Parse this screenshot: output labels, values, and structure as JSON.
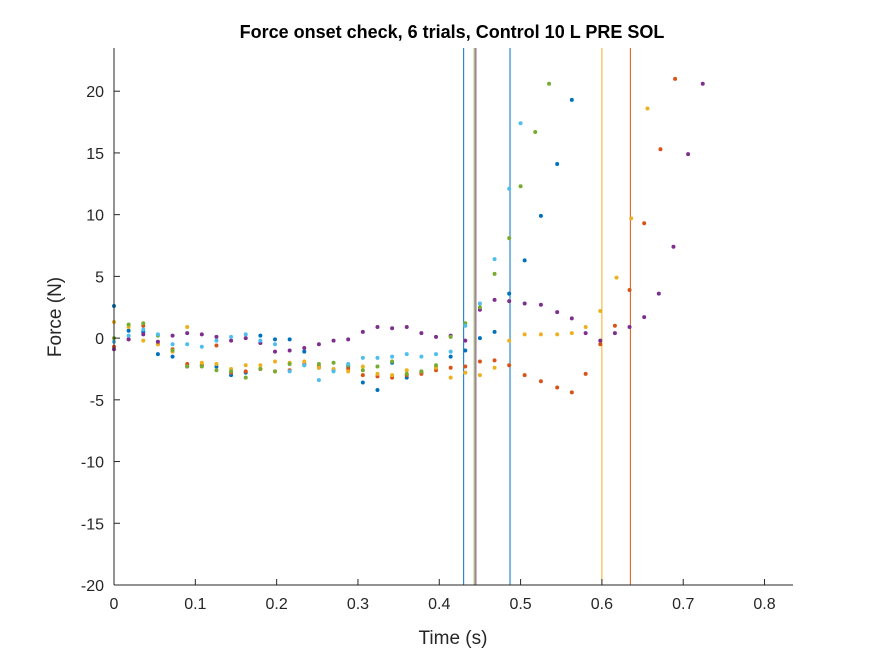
{
  "chart_data": {
    "type": "scatter",
    "title": "Force onset check, 6 trials, Control 10 L PRE SOL",
    "xlabel": "Time (s)",
    "ylabel": "Force (N)",
    "xlim": [
      0,
      0.835
    ],
    "ylim": [
      -20,
      23.5
    ],
    "xticks": [
      0,
      0.1,
      0.2,
      0.3,
      0.4,
      0.5,
      0.6,
      0.7,
      0.8
    ],
    "xtick_labels": [
      "0",
      "0.1",
      "0.2",
      "0.3",
      "0.4",
      "0.5",
      "0.6",
      "0.7",
      "0.8"
    ],
    "yticks": [
      -20,
      -15,
      -10,
      -5,
      0,
      5,
      10,
      15,
      20
    ],
    "ytick_labels": [
      "-20",
      "-15",
      "-10",
      "-5",
      "0",
      "5",
      "10",
      "15",
      "20"
    ],
    "grid": false,
    "series": [
      {
        "color": "#0072BD",
        "x": [
          0,
          0.018,
          0.036,
          0.054,
          0.072,
          0.09,
          0.108,
          0.126,
          0.144,
          0.162,
          0.18,
          0.198,
          0.216,
          0.234,
          0.252,
          0.27,
          0.288,
          0.306,
          0.324,
          0.342,
          0.36,
          0.378,
          0.396,
          0.414,
          0.432,
          0.45,
          0.468,
          0.486,
          0.505,
          0.525,
          0.545,
          0.563
        ],
        "y": [
          2.6,
          0.6,
          0.5,
          -1.3,
          -1.5,
          -2.3,
          -2.2,
          -2.3,
          -3.0,
          -2.8,
          0.2,
          -0.1,
          -0.1,
          -1.1,
          -2.4,
          -2.6,
          -2.3,
          -3.6,
          -4.2,
          -2.0,
          -3.2,
          -2.8,
          -2.4,
          -1.5,
          -1.0,
          0.0,
          0.5,
          3.6,
          6.3,
          9.9,
          14.1,
          19.3
        ]
      },
      {
        "color": "#D95319",
        "x": [
          0,
          0.018,
          0.036,
          0.054,
          0.072,
          0.09,
          0.108,
          0.126,
          0.144,
          0.162,
          0.18,
          0.198,
          0.216,
          0.234,
          0.252,
          0.27,
          0.288,
          0.306,
          0.324,
          0.342,
          0.36,
          0.378,
          0.396,
          0.414,
          0.432,
          0.45,
          0.468,
          0.486,
          0.505,
          0.525,
          0.545,
          0.563,
          0.58,
          0.598,
          0.616,
          0.634,
          0.652,
          0.672,
          0.69
        ],
        "y": [
          -0.7,
          -0.1,
          1.0,
          -0.5,
          -0.9,
          -2.1,
          -2.2,
          -0.6,
          -2.8,
          -2.7,
          -2.5,
          -2.7,
          -2.6,
          -2.1,
          -2.3,
          -2.6,
          -2.5,
          -3.0,
          -3.1,
          -3.2,
          -3.0,
          -2.9,
          -2.6,
          -2.4,
          -2.3,
          -1.9,
          -1.8,
          -2.2,
          -3.0,
          -3.5,
          -4.0,
          -4.4,
          -2.9,
          -0.5,
          1.0,
          3.9,
          9.3,
          15.3,
          21.0
        ]
      },
      {
        "color": "#EDB120",
        "x": [
          0,
          0.018,
          0.036,
          0.054,
          0.072,
          0.09,
          0.108,
          0.126,
          0.144,
          0.162,
          0.18,
          0.198,
          0.216,
          0.234,
          0.252,
          0.27,
          0.288,
          0.306,
          0.324,
          0.342,
          0.36,
          0.378,
          0.396,
          0.414,
          0.432,
          0.45,
          0.468,
          0.486,
          0.505,
          0.525,
          0.545,
          0.563,
          0.58,
          0.598,
          0.618,
          0.636,
          0.656
        ],
        "y": [
          1.3,
          0.9,
          -0.2,
          -0.5,
          -1.1,
          0.9,
          -2.0,
          -2.1,
          -2.5,
          -2.2,
          -2.2,
          -1.9,
          -2.0,
          -1.9,
          -2.4,
          -2.5,
          -2.7,
          -2.3,
          -2.9,
          -3.0,
          -2.6,
          -2.7,
          -2.4,
          -3.2,
          -2.8,
          -3.0,
          -2.4,
          -0.2,
          0.3,
          0.3,
          0.3,
          0.4,
          0.9,
          2.2,
          4.9,
          9.7,
          18.6
        ]
      },
      {
        "color": "#7E2F8E",
        "x": [
          0,
          0.018,
          0.036,
          0.054,
          0.072,
          0.09,
          0.108,
          0.126,
          0.144,
          0.162,
          0.18,
          0.198,
          0.216,
          0.234,
          0.252,
          0.27,
          0.288,
          0.306,
          0.324,
          0.342,
          0.36,
          0.378,
          0.396,
          0.414,
          0.432,
          0.45,
          0.468,
          0.486,
          0.505,
          0.525,
          0.545,
          0.563,
          0.58,
          0.598,
          0.616,
          0.634,
          0.652,
          0.67,
          0.688,
          0.706,
          0.724
        ],
        "y": [
          -0.9,
          -0.1,
          0.3,
          -0.3,
          0.2,
          0.4,
          0.3,
          0.1,
          -0.2,
          0.0,
          -0.4,
          -1.1,
          -1.0,
          -0.8,
          -0.5,
          -0.2,
          -0.1,
          0.5,
          0.9,
          0.8,
          0.9,
          0.4,
          0.1,
          0.2,
          -0.2,
          2.3,
          3.1,
          3.0,
          2.8,
          2.7,
          2.1,
          1.6,
          0.4,
          -0.2,
          0.4,
          0.9,
          1.7,
          3.6,
          7.4,
          14.9,
          20.6
        ]
      },
      {
        "color": "#77AC30",
        "x": [
          0,
          0.018,
          0.036,
          0.054,
          0.072,
          0.09,
          0.108,
          0.126,
          0.144,
          0.162,
          0.18,
          0.198,
          0.216,
          0.234,
          0.252,
          0.27,
          0.288,
          0.306,
          0.324,
          0.342,
          0.36,
          0.378,
          0.396,
          0.414,
          0.432,
          0.45,
          0.468,
          0.486,
          0.5,
          0.518,
          0.535
        ],
        "y": [
          0.0,
          1.1,
          1.2,
          0.2,
          -1.0,
          -2.3,
          -2.3,
          -2.6,
          -2.7,
          -3.2,
          -2.5,
          -2.7,
          -2.1,
          -2.2,
          -2.1,
          -2.0,
          -2.2,
          -2.6,
          -2.3,
          -1.9,
          -2.9,
          -2.7,
          -2.2,
          0.1,
          1.2,
          2.5,
          5.2,
          8.1,
          12.3,
          16.7,
          20.6
        ]
      },
      {
        "color": "#4DBEEE",
        "x": [
          0,
          0.018,
          0.036,
          0.054,
          0.072,
          0.09,
          0.108,
          0.126,
          0.144,
          0.162,
          0.18,
          0.198,
          0.216,
          0.234,
          0.252,
          0.27,
          0.288,
          0.306,
          0.324,
          0.342,
          0.36,
          0.378,
          0.396,
          0.414,
          0.432,
          0.45,
          0.468,
          0.486,
          0.5
        ],
        "y": [
          -0.3,
          0.2,
          0.7,
          0.3,
          -0.5,
          -0.5,
          -0.7,
          -0.2,
          0.1,
          0.3,
          -0.2,
          -0.5,
          -2.7,
          -2.2,
          -3.4,
          -2.7,
          -2.1,
          -1.6,
          -1.6,
          -1.5,
          -1.3,
          -1.5,
          -1.3,
          -1.1,
          1.0,
          2.8,
          6.4,
          12.1,
          17.4
        ]
      }
    ],
    "onset_lines": [
      {
        "color": "#0072BD",
        "x": 0.43
      },
      {
        "color": "#77AC30",
        "x": 0.443
      },
      {
        "color": "#7E2F8E",
        "x": 0.445
      },
      {
        "color": "#0072BD",
        "x": 0.487
      },
      {
        "color": "#EDB120",
        "x": 0.6
      },
      {
        "color": "#D95319",
        "x": 0.635
      }
    ]
  }
}
